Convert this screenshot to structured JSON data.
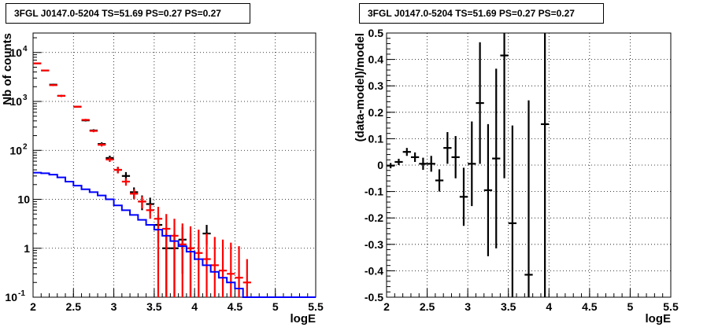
{
  "chart_data": [
    {
      "type": "scatter",
      "title": "3FGL J0147.0-5204 TS=51.69 PS=0.27 PS=0.27",
      "xlabel": "logE",
      "ylabel": "Nb of counts",
      "xlim": [
        2,
        5.5
      ],
      "ylim": [
        0.1,
        25000
      ],
      "yscale": "log",
      "grid": true,
      "x_ticks": [
        "2",
        "2.5",
        "3",
        "3.5",
        "4",
        "4.5",
        "5",
        "5.5"
      ],
      "y_ticks": [
        {
          "value": 0.1,
          "label": "10",
          "exp": "-1"
        },
        {
          "value": 1,
          "label": "1",
          "exp": ""
        },
        {
          "value": 10,
          "label": "10",
          "exp": ""
        },
        {
          "value": 100,
          "label": "10",
          "exp": "2"
        },
        {
          "value": 1000,
          "label": "10",
          "exp": "3"
        },
        {
          "value": 10000,
          "label": "10",
          "exp": "4"
        }
      ],
      "series": [
        {
          "color": "#000000",
          "style": "errorbar",
          "points": [
            {
              "x": 2.05,
              "y": 6000,
              "lo": 5850,
              "hi": 6150
            },
            {
              "x": 2.15,
              "y": 4300,
              "lo": 4170,
              "hi": 4430
            },
            {
              "x": 2.25,
              "y": 2200,
              "lo": 2110,
              "hi": 2290
            },
            {
              "x": 2.35,
              "y": 1300,
              "lo": 1240,
              "hi": 1360
            },
            {
              "x": 2.55,
              "y": 780,
              "lo": 750,
              "hi": 810
            },
            {
              "x": 2.65,
              "y": 410,
              "lo": 390,
              "hi": 430
            },
            {
              "x": 2.75,
              "y": 255,
              "lo": 240,
              "hi": 270
            },
            {
              "x": 2.85,
              "y": 135,
              "lo": 124,
              "hi": 146
            },
            {
              "x": 2.95,
              "y": 70,
              "lo": 62,
              "hi": 78
            },
            {
              "x": 3.05,
              "y": 40,
              "lo": 34,
              "hi": 46
            },
            {
              "x": 3.15,
              "y": 30,
              "lo": 24,
              "hi": 36
            },
            {
              "x": 3.25,
              "y": 14,
              "lo": 10.5,
              "hi": 17.5
            },
            {
              "x": 3.35,
              "y": 9,
              "lo": 6,
              "hi": 12
            },
            {
              "x": 3.45,
              "y": 8,
              "lo": 5.2,
              "hi": 10.8
            },
            {
              "x": 3.55,
              "y": 3,
              "lo": 1.3,
              "hi": 4.7
            },
            {
              "x": 3.65,
              "y": 1,
              "lo": 0.1,
              "hi": 2
            },
            {
              "x": 3.75,
              "y": 1,
              "lo": 0.1,
              "hi": 2
            },
            {
              "x": 3.85,
              "y": 1.5,
              "lo": 0.3,
              "hi": 2.7
            },
            {
              "x": 3.95,
              "y": 1,
              "lo": 0.1,
              "hi": 2
            },
            {
              "x": 4.15,
              "y": 2,
              "lo": 1.2,
              "hi": 3
            }
          ]
        },
        {
          "color": "#ff0000",
          "style": "errorbar",
          "points": [
            {
              "x": 2.05,
              "y": 6000,
              "lo": 5850,
              "hi": 6150
            },
            {
              "x": 2.15,
              "y": 4300,
              "lo": 4170,
              "hi": 4430
            },
            {
              "x": 2.25,
              "y": 2150,
              "lo": 2060,
              "hi": 2240
            },
            {
              "x": 2.35,
              "y": 1300,
              "lo": 1240,
              "hi": 1360
            },
            {
              "x": 2.55,
              "y": 780,
              "lo": 750,
              "hi": 810
            },
            {
              "x": 2.65,
              "y": 420,
              "lo": 400,
              "hi": 440
            },
            {
              "x": 2.75,
              "y": 250,
              "lo": 235,
              "hi": 265
            },
            {
              "x": 2.85,
              "y": 130,
              "lo": 120,
              "hi": 140
            },
            {
              "x": 2.95,
              "y": 65,
              "lo": 58,
              "hi": 72
            },
            {
              "x": 3.05,
              "y": 40,
              "lo": 34,
              "hi": 46
            },
            {
              "x": 3.15,
              "y": 23,
              "lo": 19,
              "hi": 27
            },
            {
              "x": 3.25,
              "y": 13,
              "lo": 10,
              "hi": 16
            },
            {
              "x": 3.35,
              "y": 9,
              "lo": 6.5,
              "hi": 11.5
            },
            {
              "x": 3.45,
              "y": 6,
              "lo": 4,
              "hi": 8
            },
            {
              "x": 3.55,
              "y": 4,
              "lo": 0.1,
              "hi": 7
            },
            {
              "x": 3.65,
              "y": 2.5,
              "lo": 0.1,
              "hi": 5
            },
            {
              "x": 3.75,
              "y": 1.8,
              "lo": 0.1,
              "hi": 4
            },
            {
              "x": 3.85,
              "y": 1.2,
              "lo": 0.1,
              "hi": 3.2
            },
            {
              "x": 3.95,
              "y": 1,
              "lo": 0.1,
              "hi": 2.8
            },
            {
              "x": 4.05,
              "y": 0.8,
              "lo": 0.1,
              "hi": 2.4
            },
            {
              "x": 4.15,
              "y": 0.6,
              "lo": 0.1,
              "hi": 2
            },
            {
              "x": 4.25,
              "y": 0.45,
              "lo": 0.1,
              "hi": 1.7
            },
            {
              "x": 4.35,
              "y": 0.35,
              "lo": 0.1,
              "hi": 1.5
            },
            {
              "x": 4.45,
              "y": 0.3,
              "lo": 0.1,
              "hi": 1.3
            },
            {
              "x": 4.55,
              "y": 0.25,
              "lo": 0.1,
              "hi": 1.1
            },
            {
              "x": 4.65,
              "y": 0.2,
              "lo": 0.1,
              "hi": 0.6
            }
          ]
        },
        {
          "color": "#0000ff",
          "style": "step",
          "edges": [
            2.0,
            2.1,
            2.2,
            2.3,
            2.4,
            2.5,
            2.6,
            2.7,
            2.8,
            2.9,
            3.0,
            3.1,
            3.2,
            3.3,
            3.4,
            3.5,
            3.6,
            3.7,
            3.8,
            3.9,
            4.0,
            4.1,
            4.2,
            4.3,
            4.4,
            4.5,
            4.6,
            4.7,
            4.8,
            4.9,
            5.0,
            5.1,
            5.2,
            5.3,
            5.4,
            5.5
          ],
          "values": [
            35,
            34,
            32,
            28,
            23,
            19,
            16,
            14,
            12,
            10,
            7.5,
            6,
            4.8,
            3.8,
            3.0,
            2.4,
            1.8,
            1.4,
            1.1,
            0.85,
            0.6,
            0.45,
            0.33,
            0.25,
            0.2,
            0.15,
            0.1,
            0.1,
            0.1,
            0.1,
            0.1,
            0.1,
            0.1,
            0.1,
            0.1
          ]
        }
      ]
    },
    {
      "type": "scatter",
      "title": "3FGL J0147.0-5204 TS=51.69 PS=0.27 PS=0.27",
      "xlabel": "logE",
      "ylabel": "(data-model)/model",
      "xlim": [
        2,
        5.5
      ],
      "ylim": [
        -0.5,
        0.5
      ],
      "grid": true,
      "x_ticks": [
        "2",
        "2.5",
        "3",
        "3.5",
        "4",
        "4.5",
        "5",
        "5.5"
      ],
      "y_ticks": [
        "-0.5",
        "-0.4",
        "-0.3",
        "-0.2",
        "-0.1",
        "0",
        "0.1",
        "0.2",
        "0.3",
        "0.4",
        "0.5"
      ],
      "series": [
        {
          "color": "#000000",
          "style": "errorbar",
          "points": [
            {
              "x": 2.05,
              "y": -0.002,
              "lo": -0.012,
              "hi": 0.008
            },
            {
              "x": 2.15,
              "y": 0.012,
              "lo": 0.0,
              "hi": 0.024
            },
            {
              "x": 2.25,
              "y": 0.05,
              "lo": 0.035,
              "hi": 0.065
            },
            {
              "x": 2.35,
              "y": 0.03,
              "lo": 0.012,
              "hi": 0.048
            },
            {
              "x": 2.45,
              "y": 0.005,
              "lo": -0.018,
              "hi": 0.028
            },
            {
              "x": 2.55,
              "y": 0.005,
              "lo": -0.025,
              "hi": 0.035
            },
            {
              "x": 2.65,
              "y": -0.058,
              "lo": -0.1,
              "hi": -0.016
            },
            {
              "x": 2.75,
              "y": 0.065,
              "lo": 0.005,
              "hi": 0.125
            },
            {
              "x": 2.85,
              "y": 0.03,
              "lo": -0.05,
              "hi": 0.11
            },
            {
              "x": 2.95,
              "y": -0.12,
              "lo": -0.23,
              "hi": -0.01
            },
            {
              "x": 3.05,
              "y": 0.005,
              "lo": -0.155,
              "hi": 0.165
            },
            {
              "x": 3.15,
              "y": 0.235,
              "lo": 0.005,
              "hi": 0.465
            },
            {
              "x": 3.25,
              "y": -0.095,
              "lo": -0.345,
              "hi": 0.155
            },
            {
              "x": 3.35,
              "y": 0.025,
              "lo": -0.315,
              "hi": 0.365
            },
            {
              "x": 3.45,
              "y": 0.415,
              "lo": -0.05,
              "hi": 0.5
            },
            {
              "x": 3.55,
              "y": -0.22,
              "lo": -0.5,
              "hi": 0.15
            },
            {
              "x": 3.75,
              "y": -0.415,
              "lo": -0.5,
              "hi": 0.245
            },
            {
              "x": 3.95,
              "y": 0.155,
              "lo": -0.5,
              "hi": 0.5
            }
          ]
        }
      ]
    }
  ]
}
